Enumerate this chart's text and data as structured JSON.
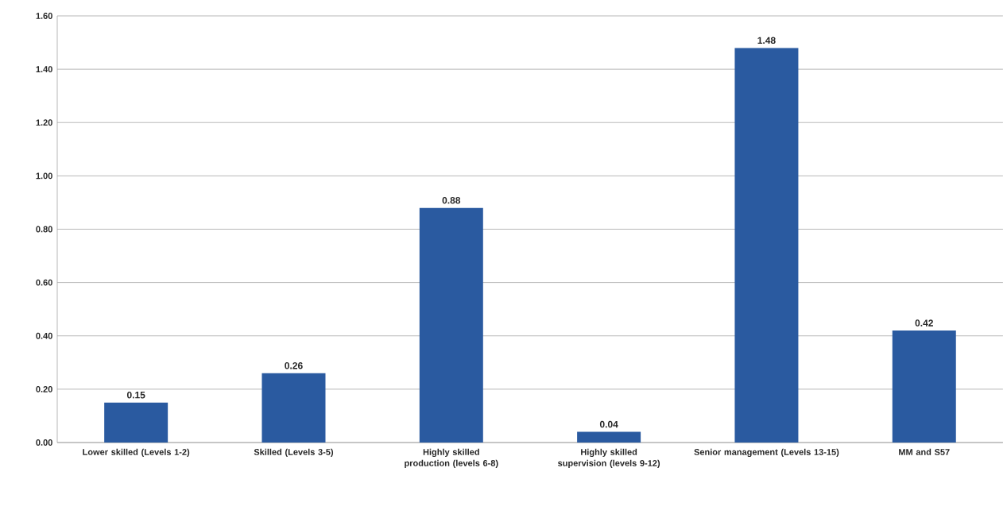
{
  "chart_data": {
    "type": "bar",
    "categories": [
      "Lower skilled (Levels 1-2)",
      "Skilled (Levels 3-5)",
      "Highly skilled production (levels 6-8)",
      "Highly skilled supervision (levels 9-12)",
      "Senior management (Levels 13-15)",
      "MM and S57"
    ],
    "values": [
      0.15,
      0.26,
      0.88,
      0.04,
      1.48,
      0.42
    ],
    "value_labels": [
      "0.15",
      "0.26",
      "0.88",
      "0.04",
      "1.48",
      "0.42"
    ],
    "color": "#2a5aa0",
    "ylim": [
      0,
      1.6
    ],
    "yticks": [
      {
        "value": 0,
        "label": "0.00"
      },
      {
        "value": 0.2,
        "label": "0.20"
      },
      {
        "value": 0.4,
        "label": "0.40"
      },
      {
        "value": 0.6,
        "label": "0.60"
      },
      {
        "value": 0.8,
        "label": "0.80"
      },
      {
        "value": 1.0,
        "label": "1.00"
      },
      {
        "value": 1.2,
        "label": "1.20"
      },
      {
        "value": 1.4,
        "label": "1.40"
      },
      {
        "value": 1.6,
        "label": "1.60"
      }
    ],
    "grid": "y"
  }
}
